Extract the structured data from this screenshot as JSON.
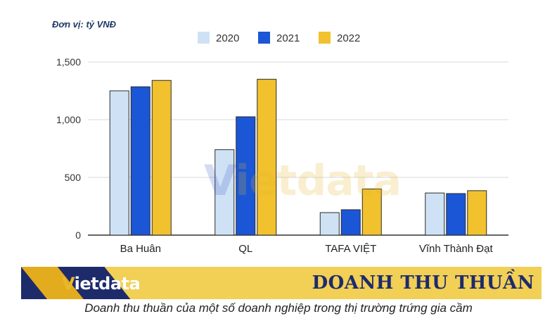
{
  "unit_label": "Đơn vị: tỷ VNĐ",
  "watermark": {
    "first": "V",
    "rest": "ietdata"
  },
  "banner": {
    "logo_first": "V",
    "logo_rest": "ietdata",
    "title": "DOANH THU THUẦN"
  },
  "caption": "Doanh thu thuần của một số doanh nghiệp trong thị trường trứng gia cầm",
  "colors": {
    "2020": "#cfe2f5",
    "2021": "#1a56d6",
    "2022": "#f2c12e",
    "banner_dark": "#1e2b6b",
    "banner_gold": "#e9b92a"
  },
  "chart_data": {
    "type": "bar",
    "categories": [
      "Ba Huân",
      "QL",
      "TAFA VIỆT",
      "Vĩnh Thành Đạt"
    ],
    "series": [
      {
        "name": "2020",
        "values": [
          1250,
          740,
          195,
          365
        ]
      },
      {
        "name": "2021",
        "values": [
          1285,
          1025,
          220,
          360
        ]
      },
      {
        "name": "2022",
        "values": [
          1340,
          1350,
          400,
          385
        ]
      }
    ],
    "yticks": [
      "0",
      "500",
      "1,000",
      "1,500"
    ],
    "ylim": [
      0,
      1500
    ],
    "grid": true,
    "legend": "top-center",
    "xlabel": "",
    "ylabel": ""
  }
}
